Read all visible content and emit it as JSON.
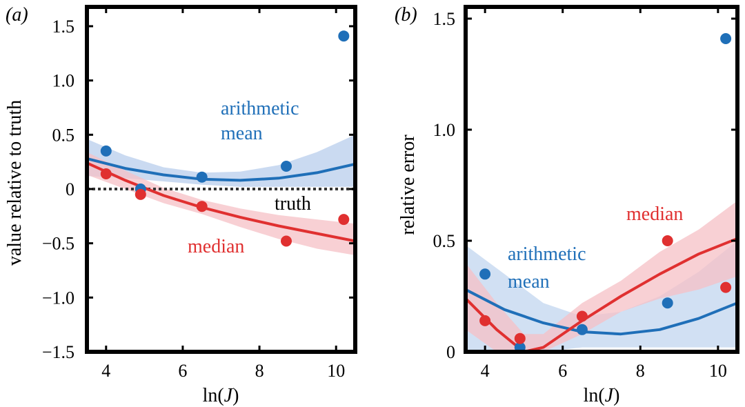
{
  "chart_data": [
    {
      "type": "scatter",
      "panel_label": "(a)",
      "xlabel": "ln(J)",
      "ylabel": "value relative to truth",
      "xlim": [
        3.5,
        10.5
      ],
      "ylim": [
        -1.5,
        1.6
      ],
      "xticks": [
        4,
        6,
        8,
        10
      ],
      "xtick_labels": [
        "4",
        "6",
        "8",
        "10"
      ],
      "yticks": [
        -1.5,
        -1.0,
        -0.5,
        0,
        0.5,
        1.0,
        1.5
      ],
      "ytick_labels": [
        "−1.5",
        "−1.0",
        "−0.5",
        "0",
        "0.5",
        "1.0",
        "1.5"
      ],
      "reference_line": {
        "y": 0,
        "label": "truth",
        "style": "dotted"
      },
      "series": [
        {
          "name": "arithmetic mean",
          "label_lines": [
            "arithmetic",
            "mean"
          ],
          "color": "#1f6fb8",
          "band_color": "#b8cdec",
          "points": {
            "x": [
              4.0,
              4.9,
              6.5,
              8.7,
              10.2
            ],
            "y": [
              0.35,
              0.0,
              0.11,
              0.21,
              1.41
            ]
          },
          "fit": {
            "x": [
              3.5,
              4.5,
              5.5,
              6.5,
              7.5,
              8.5,
              9.5,
              10.5
            ],
            "y": [
              0.28,
              0.19,
              0.13,
              0.09,
              0.08,
              0.1,
              0.15,
              0.23
            ]
          },
          "band_low": [
            0.12,
            0.1,
            0.07,
            0.04,
            0.02,
            0.02,
            0.02,
            0.02
          ],
          "band_high": [
            0.46,
            0.31,
            0.2,
            0.15,
            0.16,
            0.22,
            0.34,
            0.5
          ]
        },
        {
          "name": "median",
          "label_lines": [
            "median"
          ],
          "color": "#e03030",
          "band_color": "#f5c0c5",
          "points": {
            "x": [
              4.0,
              4.9,
              6.5,
              8.7,
              10.2
            ],
            "y": [
              0.14,
              -0.05,
              -0.16,
              -0.48,
              -0.28
            ]
          },
          "fit": {
            "x": [
              3.5,
              4.5,
              5.5,
              6.5,
              7.5,
              8.5,
              9.5,
              10.5
            ],
            "y": [
              0.24,
              0.08,
              -0.06,
              -0.17,
              -0.26,
              -0.34,
              -0.41,
              -0.48
            ]
          },
          "band_low": [
            0.13,
            0.0,
            -0.13,
            -0.23,
            -0.35,
            -0.46,
            -0.55,
            -0.61
          ],
          "band_high": [
            0.34,
            0.17,
            0.01,
            -0.1,
            -0.18,
            -0.24,
            -0.28,
            -0.32
          ]
        }
      ]
    },
    {
      "type": "scatter",
      "panel_label": "(b)",
      "xlabel": "ln(J)",
      "ylabel": "relative error",
      "xlim": [
        3.5,
        10.5
      ],
      "ylim": [
        0,
        1.5
      ],
      "xticks": [
        4,
        6,
        8,
        10
      ],
      "xtick_labels": [
        "4",
        "6",
        "8",
        "10"
      ],
      "yticks": [
        0,
        0.5,
        1.0,
        1.5
      ],
      "ytick_labels": [
        "0",
        "0.5",
        "1.0",
        "1.5"
      ],
      "series": [
        {
          "name": "arithmetic mean",
          "label_lines": [
            "arithmetic",
            "mean"
          ],
          "color": "#1f6fb8",
          "band_color": "#c2d6ef",
          "points": {
            "x": [
              4.0,
              4.9,
              6.5,
              8.7,
              10.2
            ],
            "y": [
              0.35,
              0.02,
              0.1,
              0.22,
              1.41
            ]
          },
          "fit": {
            "x": [
              3.5,
              4.5,
              5.5,
              6.5,
              7.5,
              8.5,
              9.5,
              10.5
            ],
            "y": [
              0.28,
              0.19,
              0.13,
              0.09,
              0.08,
              0.1,
              0.15,
              0.22
            ]
          },
          "band_low": [
            0.0,
            0.0,
            0.0,
            0.02,
            0.02,
            0.02,
            0.02,
            0.02
          ],
          "band_high": [
            0.48,
            0.35,
            0.22,
            0.16,
            0.18,
            0.25,
            0.36,
            0.5
          ]
        },
        {
          "name": "median",
          "label_lines": [
            "median"
          ],
          "color": "#e03030",
          "band_color": "#f5c0c5",
          "points": {
            "x": [
              4.0,
              4.9,
              6.5,
              8.7,
              10.2
            ],
            "y": [
              0.14,
              0.06,
              0.16,
              0.5,
              0.29
            ]
          },
          "fit": {
            "x": [
              3.5,
              4.3,
              5.0,
              5.5,
              6.5,
              7.5,
              8.5,
              9.5,
              10.5
            ],
            "y": [
              0.24,
              0.1,
              0.0,
              0.02,
              0.14,
              0.25,
              0.35,
              0.44,
              0.51
            ]
          },
          "band_low": [
            0.1,
            0.0,
            0.0,
            0.0,
            0.08,
            0.18,
            0.24,
            0.28,
            0.34
          ],
          "band_high": [
            0.4,
            0.22,
            0.08,
            0.08,
            0.22,
            0.32,
            0.45,
            0.55,
            0.68
          ]
        }
      ]
    }
  ]
}
